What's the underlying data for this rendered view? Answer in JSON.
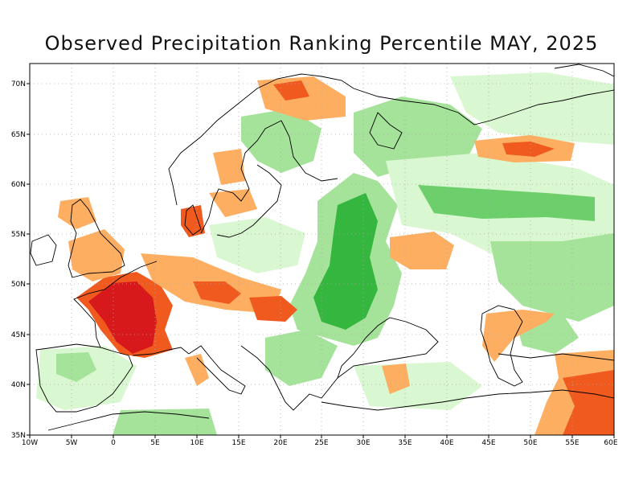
{
  "title": "Observed Precipitation Ranking Percentile MAY, 2025",
  "map": {
    "lat_labels": [
      "70N",
      "65N",
      "60N",
      "55N",
      "50N",
      "45N",
      "40N",
      "35N"
    ],
    "lon_labels": [
      "10W",
      "5W",
      "0",
      "5E",
      "10E",
      "15E",
      "20E",
      "25E",
      "30E",
      "35E",
      "40E",
      "45E",
      "50E",
      "55E",
      "60E"
    ],
    "colors": {
      "very_dry": "#d7191c",
      "dry": "#f05a1e",
      "moderately_dry": "#fdae61",
      "slightly_dry": "#fee090",
      "slightly_wet": "#d9f7d0",
      "moderately_wet": "#a6e39a",
      "wet": "#6ccf6c",
      "very_wet": "#35b63e",
      "coast": "#000000",
      "grid": "#aaaaaa"
    }
  }
}
